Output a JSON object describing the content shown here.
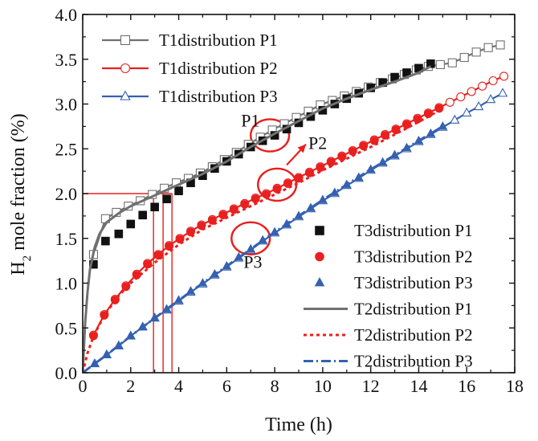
{
  "chart_data": {
    "type": "scatter",
    "title": "",
    "xlabel": "Time (h)",
    "ylabel_main": "H",
    "ylabel_sub": "2",
    "ylabel_rest": " mole fraction (%)",
    "xlim": [
      0,
      18
    ],
    "ylim": [
      0,
      4.0
    ],
    "x_ticks": [
      "0",
      "2",
      "4",
      "6",
      "8",
      "10",
      "12",
      "14",
      "16",
      "18"
    ],
    "y_ticks": [
      "0.0",
      "0.5",
      "1.0",
      "1.5",
      "2.0",
      "2.5",
      "3.0",
      "3.5",
      "4.0"
    ],
    "grid": false,
    "series": [
      {
        "name": "T1distribution P1",
        "marker": "open-square",
        "line": "solid",
        "color": "#707070",
        "x": [
          0.45,
          0.95,
          1.4,
          1.9,
          2.4,
          2.9,
          3.4,
          3.9,
          4.4,
          4.9,
          5.4,
          5.9,
          6.4,
          6.9,
          7.4,
          7.9,
          8.4,
          8.9,
          9.4,
          9.9,
          10.4,
          10.9,
          11.4,
          11.9,
          12.4,
          12.9,
          13.4,
          13.9,
          14.4,
          14.9,
          15.4,
          15.9,
          16.4,
          16.9,
          17.4
        ],
        "y": [
          1.32,
          1.72,
          1.79,
          1.86,
          1.92,
          1.99,
          2.06,
          2.12,
          2.17,
          2.23,
          2.3,
          2.38,
          2.46,
          2.55,
          2.63,
          2.71,
          2.78,
          2.85,
          2.92,
          2.99,
          3.04,
          3.09,
          3.14,
          3.19,
          3.24,
          3.28,
          3.33,
          3.38,
          3.42,
          3.44,
          3.46,
          3.52,
          3.58,
          3.63,
          3.66
        ]
      },
      {
        "name": "T1distribution P2",
        "marker": "open-circle",
        "line": "solid",
        "color": "#e8201f",
        "x": [
          0.45,
          0.9,
          1.35,
          1.8,
          2.25,
          2.7,
          3.15,
          3.6,
          4.05,
          4.5,
          4.95,
          5.4,
          5.85,
          6.3,
          6.75,
          7.2,
          7.65,
          8.1,
          8.55,
          9.0,
          9.45,
          9.9,
          10.35,
          10.8,
          11.25,
          11.7,
          12.15,
          12.6,
          13.05,
          13.5,
          13.95,
          14.4,
          14.85,
          15.3,
          15.75,
          16.2,
          16.65,
          17.1,
          17.55
        ],
        "y": [
          0.42,
          0.65,
          0.82,
          0.97,
          1.1,
          1.22,
          1.32,
          1.42,
          1.5,
          1.58,
          1.65,
          1.71,
          1.77,
          1.83,
          1.89,
          1.95,
          2.0,
          2.06,
          2.12,
          2.18,
          2.24,
          2.3,
          2.36,
          2.42,
          2.48,
          2.54,
          2.6,
          2.66,
          2.72,
          2.78,
          2.84,
          2.9,
          2.96,
          3.02,
          3.08,
          3.14,
          3.2,
          3.26,
          3.31
        ]
      },
      {
        "name": "T1distribution P3",
        "marker": "open-triangle",
        "line": "solid",
        "color": "#3561b0",
        "x": [
          0.5,
          1.0,
          1.5,
          2.0,
          2.5,
          3.0,
          3.5,
          4.0,
          4.5,
          5.0,
          5.5,
          6.0,
          6.5,
          7.0,
          7.5,
          8.0,
          8.5,
          9.0,
          9.5,
          10.0,
          10.5,
          11.0,
          11.5,
          12.0,
          12.5,
          13.0,
          13.5,
          14.0,
          14.5,
          15.0,
          15.5,
          16.0,
          16.5,
          17.0,
          17.5
        ],
        "y": [
          0.1,
          0.2,
          0.3,
          0.41,
          0.51,
          0.61,
          0.7,
          0.8,
          0.9,
          0.99,
          1.09,
          1.18,
          1.28,
          1.37,
          1.47,
          1.56,
          1.65,
          1.74,
          1.83,
          1.92,
          2.0,
          2.09,
          2.17,
          2.26,
          2.34,
          2.42,
          2.5,
          2.58,
          2.66,
          2.74,
          2.82,
          2.9,
          2.97,
          3.05,
          3.12
        ]
      },
      {
        "name": "T3distribution P1",
        "marker": "filled-square",
        "line": "none",
        "color": "#111111",
        "x": [
          0.45,
          0.95,
          1.5,
          2.0,
          2.5,
          3.0,
          3.5,
          4.0,
          4.5,
          5.0,
          5.5,
          6.0,
          6.5,
          7.0,
          7.5,
          8.0,
          8.5,
          9.0,
          9.5,
          10.0,
          10.5,
          11.0,
          11.5,
          12.0,
          12.5,
          13.0,
          13.5,
          14.0,
          14.5
        ],
        "y": [
          1.21,
          1.47,
          1.55,
          1.66,
          1.76,
          1.85,
          1.94,
          2.03,
          2.12,
          2.2,
          2.28,
          2.36,
          2.44,
          2.52,
          2.59,
          2.65,
          2.72,
          2.79,
          2.86,
          2.93,
          3.0,
          3.06,
          3.12,
          3.18,
          3.24,
          3.3,
          3.35,
          3.4,
          3.45
        ]
      },
      {
        "name": "T3distribution P2",
        "marker": "filled-circle",
        "line": "none",
        "color": "#e8201f",
        "x": [
          0.45,
          0.9,
          1.35,
          1.8,
          2.25,
          2.7,
          3.15,
          3.6,
          4.05,
          4.5,
          4.95,
          5.4,
          5.85,
          6.3,
          6.75,
          7.2,
          7.65,
          8.1,
          8.55,
          9.0,
          9.45,
          9.9,
          10.35,
          10.8,
          11.25,
          11.7,
          12.15,
          12.6,
          13.05,
          13.5,
          13.95,
          14.4,
          14.85
        ],
        "y": [
          0.41,
          0.64,
          0.81,
          0.96,
          1.09,
          1.21,
          1.31,
          1.41,
          1.49,
          1.57,
          1.64,
          1.7,
          1.76,
          1.82,
          1.88,
          1.94,
          1.99,
          2.05,
          2.11,
          2.17,
          2.23,
          2.29,
          2.35,
          2.41,
          2.47,
          2.53,
          2.59,
          2.65,
          2.71,
          2.77,
          2.83,
          2.89,
          2.95
        ]
      },
      {
        "name": "T3distribution P3",
        "marker": "filled-triangle",
        "line": "none",
        "color": "#3561b0",
        "x": [
          0.5,
          1.0,
          1.5,
          2.0,
          2.5,
          3.0,
          3.5,
          4.0,
          4.5,
          5.0,
          5.5,
          6.0,
          6.5,
          7.0,
          7.5,
          8.0,
          8.5,
          9.0,
          9.5,
          10.0,
          10.5,
          11.0,
          11.5,
          12.0,
          12.5,
          13.0,
          13.5,
          14.0,
          14.5,
          15.0
        ],
        "y": [
          0.1,
          0.2,
          0.3,
          0.41,
          0.51,
          0.61,
          0.71,
          0.81,
          0.91,
          1.0,
          1.1,
          1.19,
          1.29,
          1.38,
          1.48,
          1.57,
          1.66,
          1.75,
          1.84,
          1.93,
          2.01,
          2.1,
          2.18,
          2.27,
          2.35,
          2.43,
          2.51,
          2.59,
          2.67,
          2.75
        ]
      },
      {
        "name": "T2distribution P1",
        "marker": "none",
        "line": "solid",
        "color": "#707070",
        "x": [
          0,
          0.1,
          0.2,
          0.3,
          0.5,
          0.7,
          1.0,
          1.5,
          2.0,
          3.0,
          4.0,
          5.0,
          6.0,
          7.0,
          8.0,
          9.0,
          10.0,
          11.0,
          12.0,
          13.0,
          14.0,
          14.5
        ],
        "y": [
          0.0,
          0.55,
          0.9,
          1.15,
          1.4,
          1.55,
          1.68,
          1.78,
          1.86,
          1.98,
          2.1,
          2.22,
          2.36,
          2.52,
          2.67,
          2.81,
          2.95,
          3.06,
          3.16,
          3.25,
          3.35,
          3.42
        ]
      },
      {
        "name": "T2distribution P2",
        "marker": "none",
        "line": "dotted",
        "color": "#e8201f",
        "x": [
          0,
          0.2,
          0.45,
          0.9,
          1.5,
          2.0,
          3.0,
          4.0,
          5.0,
          6.0,
          7.0,
          8.0,
          9.0,
          10.0,
          11.0,
          12.0,
          13.0,
          14.0,
          15.0
        ],
        "y": [
          0.0,
          0.22,
          0.41,
          0.64,
          0.86,
          1.0,
          1.23,
          1.43,
          1.6,
          1.73,
          1.86,
          1.99,
          2.12,
          2.26,
          2.39,
          2.52,
          2.66,
          2.8,
          2.95
        ]
      },
      {
        "name": "T2distribution P3",
        "marker": "none",
        "line": "dashdot",
        "color": "#3561b0",
        "x": [
          0,
          1.0,
          2.0,
          3.0,
          4.0,
          5.0,
          6.0,
          7.0,
          8.0,
          9.0,
          10.0,
          11.0,
          12.0,
          13.0,
          14.0,
          15.0
        ],
        "y": [
          0.0,
          0.2,
          0.41,
          0.61,
          0.81,
          1.0,
          1.19,
          1.38,
          1.57,
          1.75,
          1.93,
          2.1,
          2.27,
          2.43,
          2.59,
          2.75
        ]
      }
    ],
    "legend_top": [
      "T1distribution P1",
      "T1distribution P2",
      "T1distribution P3"
    ],
    "legend_bottom": [
      "T3distribution P1",
      "T3distribution P2",
      "T3distribution P3",
      "T2distribution P1",
      "T2distribution P2",
      "T2distribution P3"
    ],
    "annotations": {
      "threshold_y": 2.0,
      "threshold_x": [
        2.95,
        3.35,
        3.72
      ],
      "ellipses": [
        {
          "label": "P1",
          "cx": 7.8,
          "cy": 2.65,
          "rx": 0.8,
          "ry": 0.18
        },
        {
          "label": "P2",
          "cx": 8.1,
          "cy": 2.1,
          "rx": 0.8,
          "ry": 0.18
        },
        {
          "label": "P3",
          "cx": 7.0,
          "cy": 1.5,
          "rx": 0.8,
          "ry": 0.18
        }
      ],
      "text_labels": [
        {
          "text": "P1",
          "x": 6.6,
          "y": 2.75
        },
        {
          "text": "P2",
          "x": 9.4,
          "y": 2.5
        },
        {
          "text": "P3",
          "x": 6.7,
          "y": 1.17
        }
      ],
      "arrow": {
        "x1": 8.5,
        "y1": 2.32,
        "x2": 9.3,
        "y2": 2.55
      }
    }
  }
}
